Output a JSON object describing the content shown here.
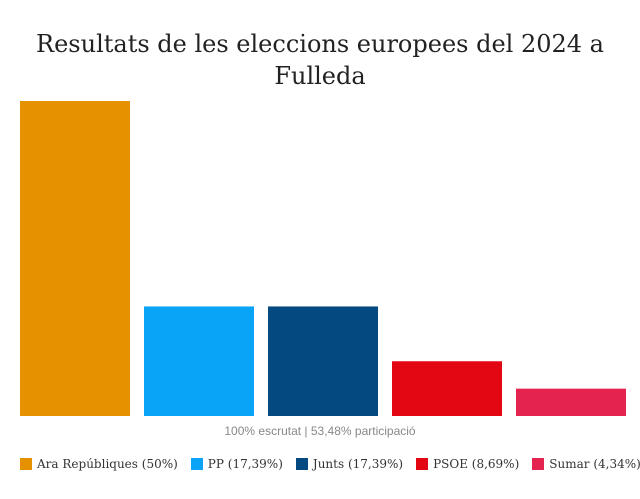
{
  "chart_data": {
    "type": "bar",
    "title": "Resultats de les eleccions europees del 2024 a Fulleda",
    "subtitle": "100% escrutat  |  53,48% participació",
    "categories": [
      "Ara Repúbliques",
      "PP",
      "Junts",
      "PSOE",
      "Sumar"
    ],
    "values": [
      50,
      17.39,
      17.39,
      8.69,
      4.34
    ],
    "colors": [
      "#e59100",
      "#0aa4f7",
      "#044a80",
      "#e30613",
      "#e4234f"
    ],
    "legend_labels": [
      "Ara Repúbliques (50%)",
      "PP (17,39%)",
      "Junts (17,39%)",
      "PSOE (8,69%)",
      "Sumar (4,34%)"
    ],
    "ylim": [
      0,
      50
    ],
    "xlabel": "",
    "ylabel": ""
  }
}
